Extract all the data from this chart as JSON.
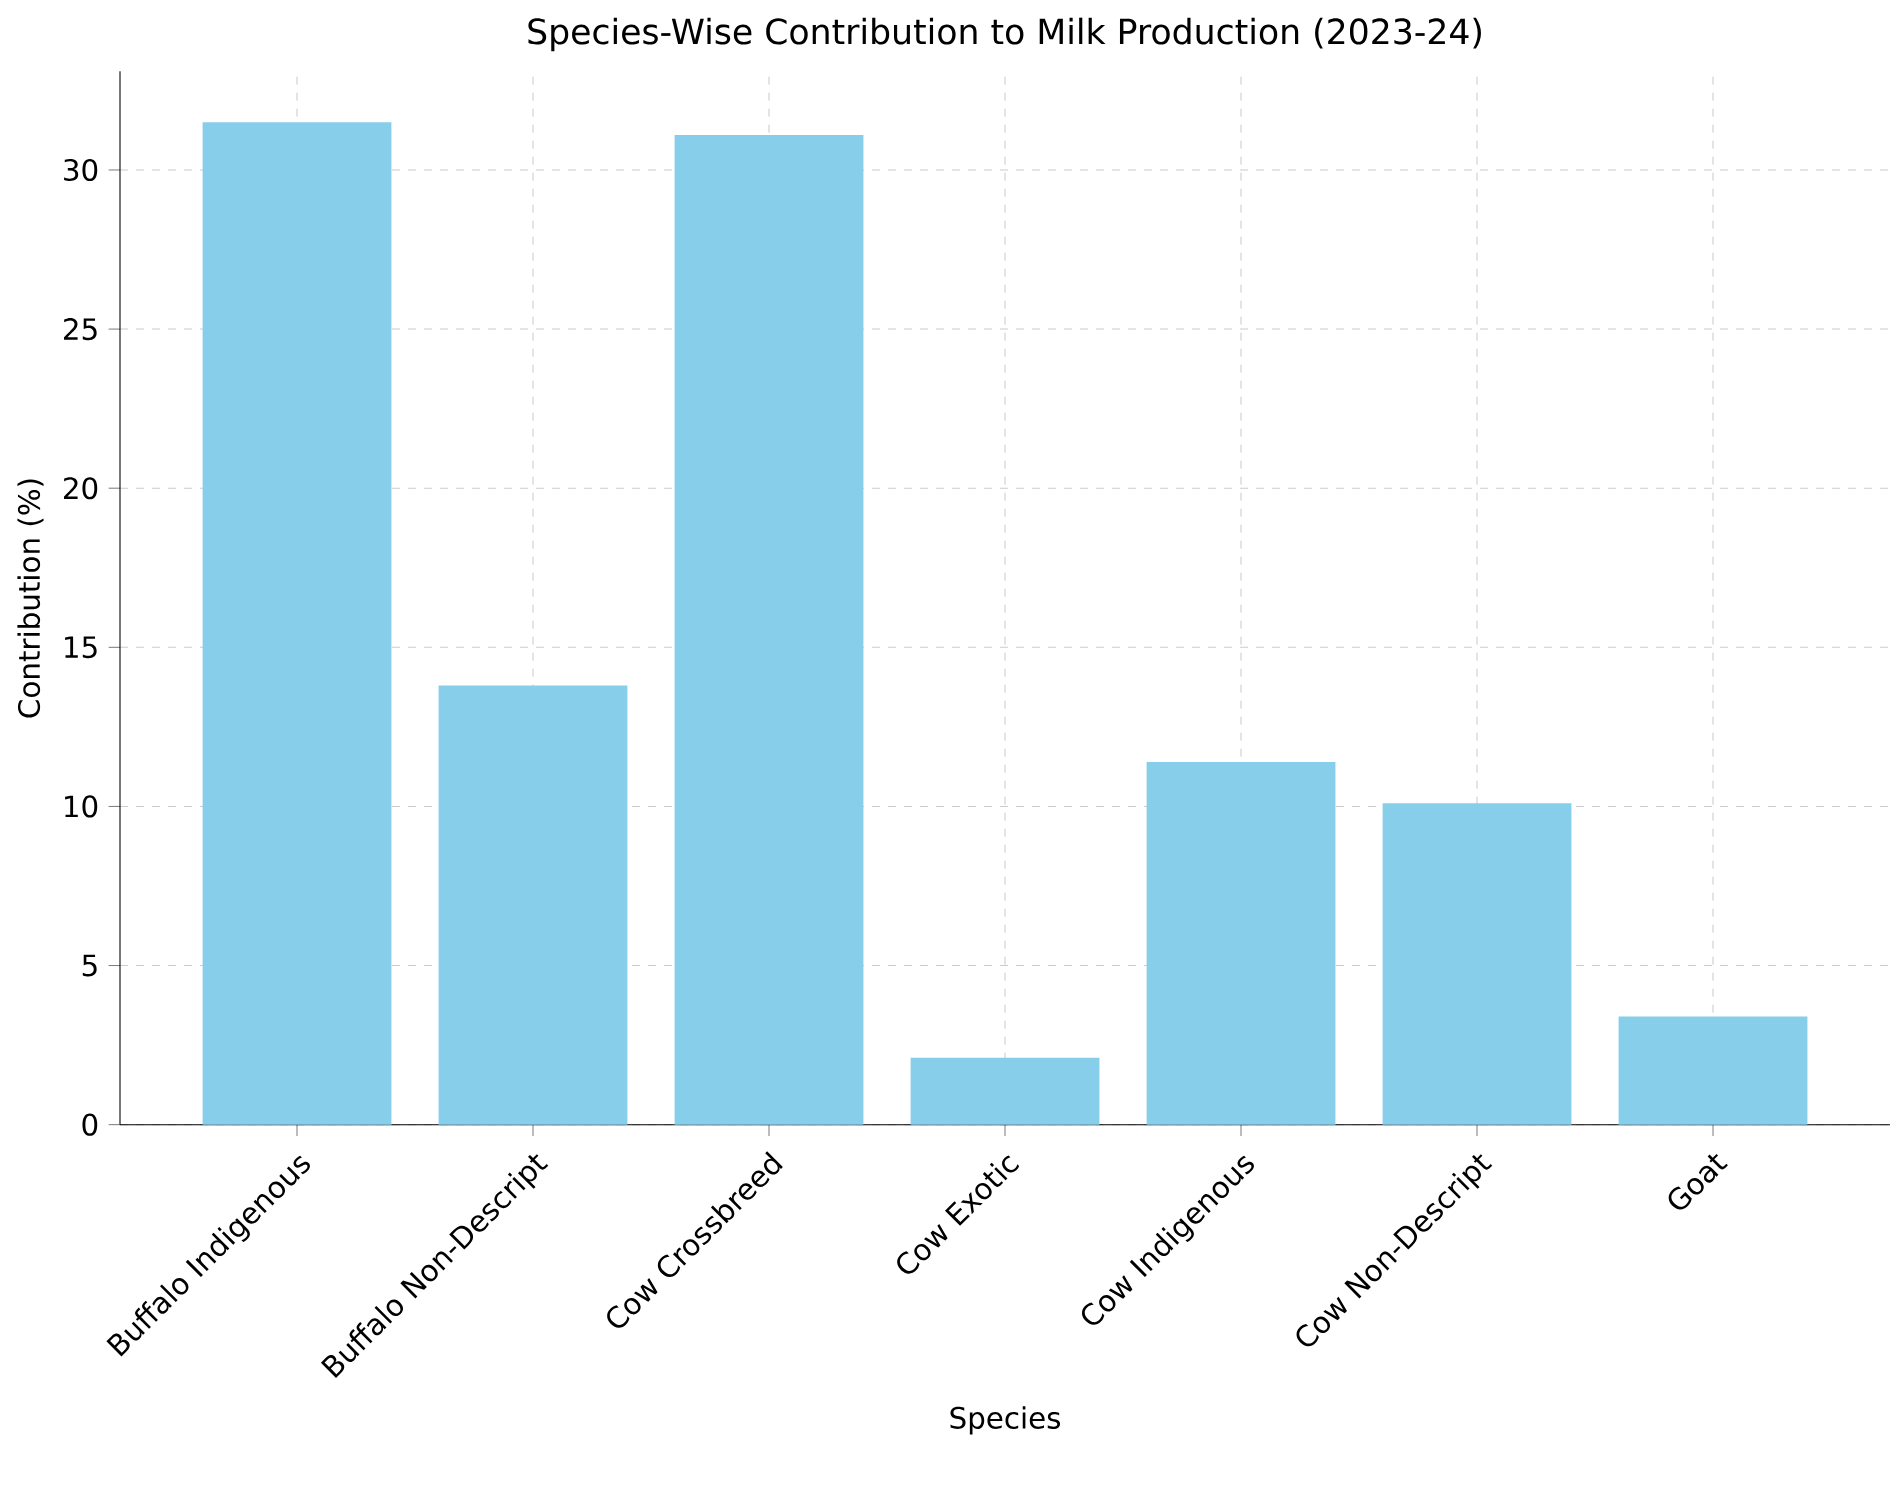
{
  "chart_data": {
    "type": "bar",
    "title": "Species-Wise Contribution to Milk Production (2023-24)",
    "xlabel": "Species",
    "ylabel": "Contribution (%)",
    "categories": [
      "Buffalo Indigenous",
      "Buffalo Non-Descript",
      "Cow Crossbreed",
      "Cow Exotic",
      "Cow Indigenous",
      "Cow Non-Descript",
      "Goat"
    ],
    "values": [
      31.5,
      13.8,
      31.1,
      2.1,
      11.4,
      10.1,
      3.4
    ],
    "color": "#87ceeb",
    "ylim": [
      0,
      33.1
    ],
    "yticks": [
      0,
      5,
      10,
      15,
      20,
      25,
      30
    ],
    "grid": true
  }
}
